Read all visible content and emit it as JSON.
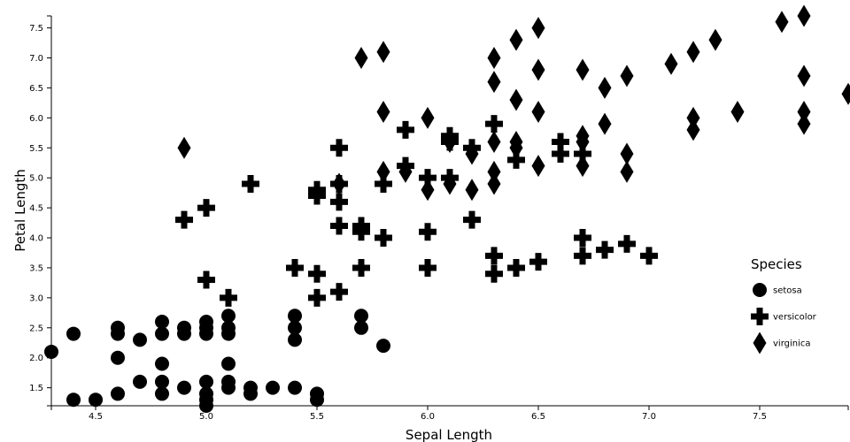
{
  "chart_data": {
    "type": "scatter",
    "xlabel": "Sepal Length",
    "ylabel": "Petal Length",
    "xlim": [
      4.3,
      7.9
    ],
    "ylim": [
      1.2,
      7.7
    ],
    "x_ticks": [
      "4.5",
      "5.0",
      "5.5",
      "6.0",
      "6.5",
      "7.0",
      "7.5"
    ],
    "y_ticks": [
      "1.5",
      "2.0",
      "2.5",
      "3.0",
      "3.5",
      "4.0",
      "4.5",
      "5.0",
      "5.5",
      "6.0",
      "6.5",
      "7.0",
      "7.5"
    ],
    "legend": {
      "title": "Species",
      "position": "right",
      "entries": [
        {
          "label": "setosa",
          "shape": "circle"
        },
        {
          "label": "versicolor",
          "shape": "cross"
        },
        {
          "label": "virginica",
          "shape": "diamond"
        }
      ]
    },
    "series": [
      {
        "name": "setosa",
        "shape": "circle",
        "points": [
          [
            4.3,
            2.1
          ],
          [
            4.4,
            2.4
          ],
          [
            4.4,
            1.3
          ],
          [
            4.5,
            1.3
          ],
          [
            4.6,
            2.5
          ],
          [
            4.6,
            2.4
          ],
          [
            4.6,
            2.0
          ],
          [
            4.6,
            1.4
          ],
          [
            4.7,
            2.3
          ],
          [
            4.7,
            1.6
          ],
          [
            4.8,
            2.6
          ],
          [
            4.8,
            2.4
          ],
          [
            4.8,
            1.9
          ],
          [
            4.8,
            1.6
          ],
          [
            4.8,
            1.4
          ],
          [
            4.9,
            2.5
          ],
          [
            4.9,
            2.4
          ],
          [
            4.9,
            1.5
          ],
          [
            5.0,
            2.6
          ],
          [
            5.0,
            2.5
          ],
          [
            5.0,
            2.4
          ],
          [
            5.0,
            1.6
          ],
          [
            5.0,
            1.4
          ],
          [
            5.0,
            1.3
          ],
          [
            5.0,
            1.2
          ],
          [
            5.1,
            2.7
          ],
          [
            5.1,
            2.5
          ],
          [
            5.1,
            2.4
          ],
          [
            5.1,
            1.9
          ],
          [
            5.1,
            1.6
          ],
          [
            5.1,
            1.5
          ],
          [
            5.2,
            1.5
          ],
          [
            5.2,
            1.4
          ],
          [
            5.3,
            1.5
          ],
          [
            5.4,
            2.7
          ],
          [
            5.4,
            2.5
          ],
          [
            5.4,
            2.3
          ],
          [
            5.4,
            1.5
          ],
          [
            5.5,
            1.4
          ],
          [
            5.5,
            1.3
          ],
          [
            5.7,
            2.7
          ],
          [
            5.7,
            2.5
          ],
          [
            5.8,
            2.2
          ]
        ]
      },
      {
        "name": "versicolor",
        "shape": "cross",
        "points": [
          [
            4.9,
            4.3
          ],
          [
            5.0,
            4.5
          ],
          [
            5.0,
            3.3
          ],
          [
            5.1,
            3.0
          ],
          [
            5.2,
            4.9
          ],
          [
            5.4,
            3.5
          ],
          [
            5.5,
            4.8
          ],
          [
            5.5,
            4.7
          ],
          [
            5.5,
            3.4
          ],
          [
            5.5,
            3.0
          ],
          [
            5.6,
            5.5
          ],
          [
            5.6,
            4.9
          ],
          [
            5.6,
            4.6
          ],
          [
            5.6,
            4.2
          ],
          [
            5.6,
            3.1
          ],
          [
            5.7,
            4.2
          ],
          [
            5.7,
            4.1
          ],
          [
            5.7,
            3.5
          ],
          [
            5.8,
            4.9
          ],
          [
            5.8,
            4.0
          ],
          [
            5.9,
            5.8
          ],
          [
            5.9,
            5.2
          ],
          [
            6.0,
            5.0
          ],
          [
            6.0,
            4.1
          ],
          [
            6.0,
            3.5
          ],
          [
            6.1,
            5.7
          ],
          [
            6.1,
            5.6
          ],
          [
            6.1,
            5.0
          ],
          [
            6.2,
            5.5
          ],
          [
            6.2,
            4.3
          ],
          [
            6.3,
            5.9
          ],
          [
            6.3,
            3.7
          ],
          [
            6.3,
            3.4
          ],
          [
            6.4,
            5.3
          ],
          [
            6.4,
            3.5
          ],
          [
            6.5,
            3.6
          ],
          [
            6.6,
            5.6
          ],
          [
            6.6,
            5.4
          ],
          [
            6.7,
            5.4
          ],
          [
            6.7,
            4.0
          ],
          [
            6.7,
            3.7
          ],
          [
            6.8,
            3.8
          ],
          [
            6.9,
            3.9
          ],
          [
            7.0,
            3.7
          ]
        ]
      },
      {
        "name": "virginica",
        "shape": "diamond",
        "points": [
          [
            4.9,
            5.5
          ],
          [
            5.6,
            4.9
          ],
          [
            5.7,
            7.0
          ],
          [
            5.8,
            7.1
          ],
          [
            5.8,
            6.1
          ],
          [
            5.8,
            5.1
          ],
          [
            5.9,
            5.1
          ],
          [
            6.0,
            6.0
          ],
          [
            6.0,
            4.8
          ],
          [
            6.1,
            5.6
          ],
          [
            6.1,
            4.9
          ],
          [
            6.2,
            5.4
          ],
          [
            6.2,
            4.8
          ],
          [
            6.3,
            7.0
          ],
          [
            6.3,
            6.6
          ],
          [
            6.3,
            5.6
          ],
          [
            6.3,
            5.1
          ],
          [
            6.3,
            4.9
          ],
          [
            6.4,
            7.3
          ],
          [
            6.4,
            6.3
          ],
          [
            6.4,
            5.6
          ],
          [
            6.4,
            5.5
          ],
          [
            6.5,
            7.5
          ],
          [
            6.5,
            6.8
          ],
          [
            6.5,
            6.1
          ],
          [
            6.5,
            5.2
          ],
          [
            6.7,
            6.8
          ],
          [
            6.7,
            5.7
          ],
          [
            6.7,
            5.6
          ],
          [
            6.7,
            5.2
          ],
          [
            6.8,
            6.5
          ],
          [
            6.8,
            5.9
          ],
          [
            6.9,
            6.7
          ],
          [
            6.9,
            5.4
          ],
          [
            6.9,
            5.1
          ],
          [
            7.1,
            6.9
          ],
          [
            7.2,
            7.1
          ],
          [
            7.2,
            6.0
          ],
          [
            7.2,
            5.8
          ],
          [
            7.3,
            7.3
          ],
          [
            7.4,
            6.1
          ],
          [
            7.6,
            7.6
          ],
          [
            7.7,
            7.7
          ],
          [
            7.7,
            6.7
          ],
          [
            7.7,
            6.1
          ],
          [
            7.7,
            5.9
          ],
          [
            7.9,
            6.4
          ]
        ]
      }
    ]
  }
}
